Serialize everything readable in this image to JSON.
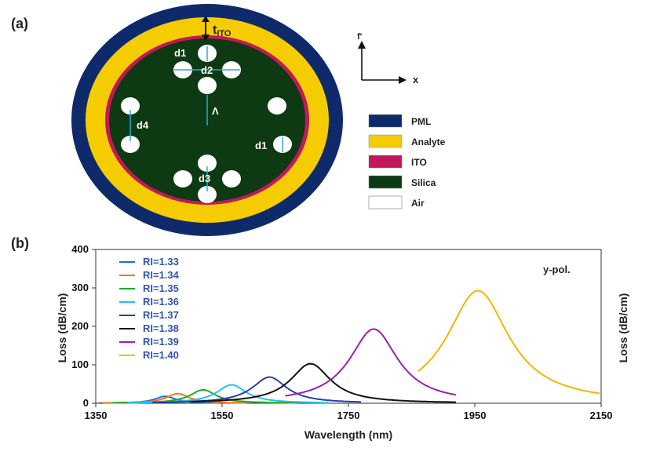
{
  "figure": {
    "panel_a_label": "(a)",
    "panel_b_label": "(b)",
    "thickness_label": "t",
    "thickness_sub": "ITO",
    "dimension_labels": {
      "d1_top": "d1",
      "d2": "d2",
      "d4": "d4",
      "d1_right": "d1",
      "d3": "d3",
      "lambda": "Λ"
    },
    "axes_indicator": {
      "x": "x",
      "y": "f'"
    },
    "layers": [
      {
        "name": "PML",
        "color": "#0f2a6b"
      },
      {
        "name": "Analyte",
        "color": "#f5cc00"
      },
      {
        "name": "ITO",
        "color": "#c2185b"
      },
      {
        "name": "Silica",
        "color": "#0d3a12"
      },
      {
        "name": "Air",
        "color": "#ffffff"
      }
    ]
  },
  "chart_data": {
    "type": "line",
    "annotation": "y-pol.",
    "xlabel": "Wavelength (nm)",
    "ylabel_left": "Loss (dB/cm)",
    "ylabel_right": "Loss (dB/cm)",
    "xlim": [
      1350,
      2150
    ],
    "ylim": [
      0,
      400
    ],
    "xticks": [
      "1350",
      "1550",
      "1750",
      "1950",
      "2150"
    ],
    "yticks": [
      "0",
      "100",
      "200",
      "300",
      "400"
    ],
    "series": [
      {
        "name": "RI=1.33",
        "color": "#1f6fd6",
        "peak_x": 1460,
        "peak_y": 18,
        "x_range": [
          1355,
          1545
        ]
      },
      {
        "name": "RI=1.34",
        "color": "#f07a20",
        "peak_x": 1480,
        "peak_y": 25,
        "x_range": [
          1360,
          1590
        ]
      },
      {
        "name": "RI=1.35",
        "color": "#22aa22",
        "peak_x": 1520,
        "peak_y": 35,
        "x_range": [
          1375,
          1670
        ]
      },
      {
        "name": "RI=1.36",
        "color": "#22c4e8",
        "peak_x": 1565,
        "peak_y": 48,
        "x_range": [
          1400,
          1720
        ]
      },
      {
        "name": "RI=1.37",
        "color": "#2a3fb0",
        "peak_x": 1625,
        "peak_y": 68,
        "x_range": [
          1440,
          1770
        ]
      },
      {
        "name": "RI=1.38",
        "color": "#111111",
        "peak_x": 1690,
        "peak_y": 103,
        "x_range": [
          1500,
          1920
        ]
      },
      {
        "name": "RI=1.39",
        "color": "#9a22a8",
        "peak_x": 1790,
        "peak_y": 193,
        "x_range": [
          1650,
          1920
        ]
      },
      {
        "name": "RI=1.40",
        "color": "#f2b705",
        "peak_x": 1955,
        "peak_y": 293,
        "x_range": [
          1860,
          2150
        ]
      }
    ]
  }
}
